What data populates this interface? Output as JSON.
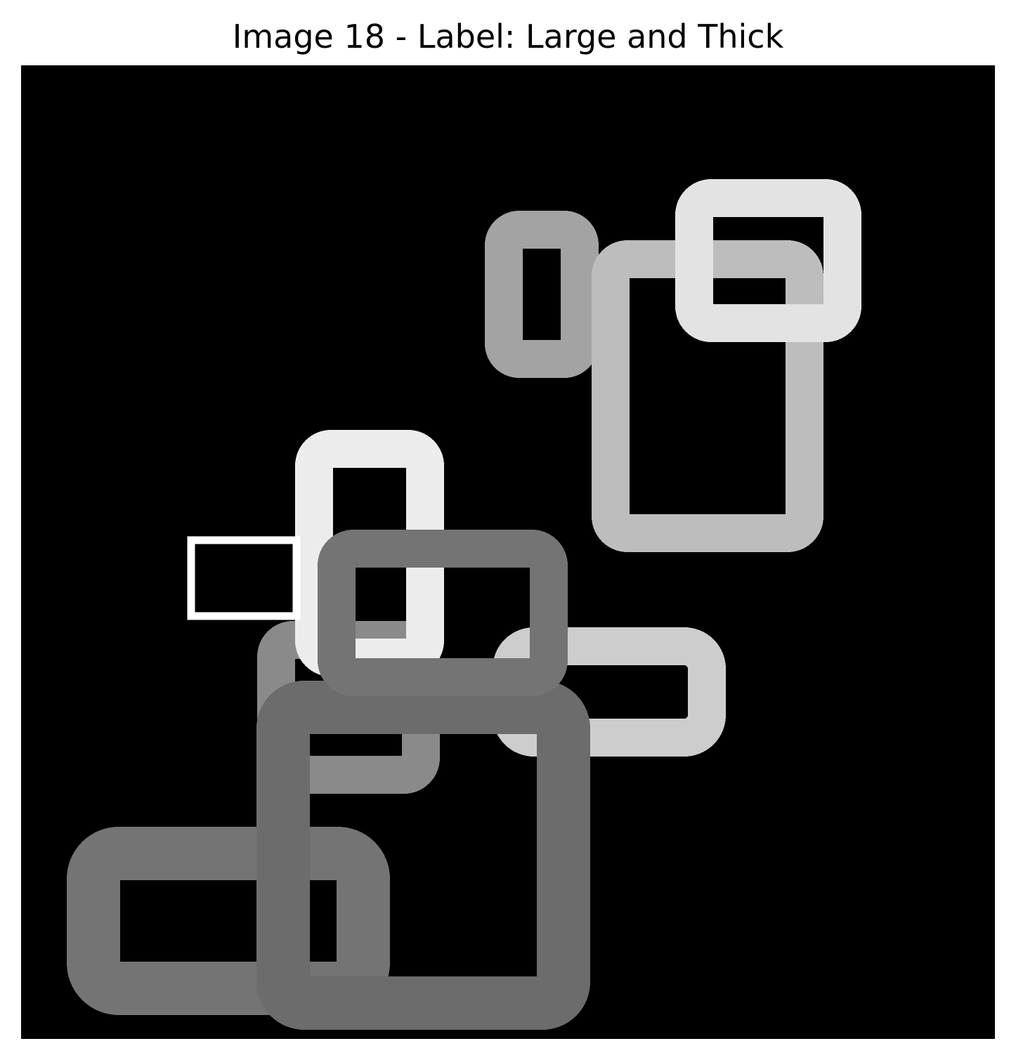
{
  "title": "Image 18 - Label: Large and Thick",
  "colors": {
    "background": "#000000",
    "frame_white": "#ffffff",
    "ring_bright": "#ececec",
    "ring_light": "#e3e3e3",
    "ring_silver": "#bdbdbd",
    "ring_pale": "#cdcdcd",
    "ring_mid": "#a3a3a3",
    "ring_gray": "#8a8a8a",
    "ring_dark": "#747474",
    "ring_darker": "#6c6c6c"
  }
}
